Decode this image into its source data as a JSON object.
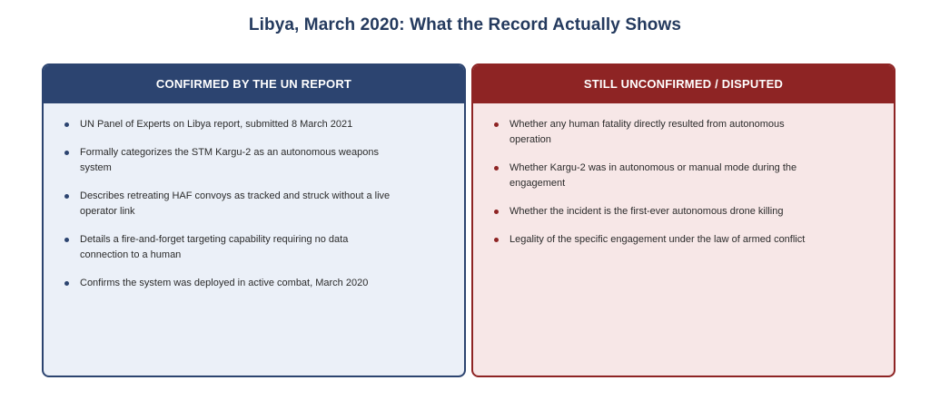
{
  "title": "Libya, March 2020: What the Record Actually Shows",
  "panels": {
    "confirmed": {
      "heading": "CONFIRMED BY THE UN REPORT",
      "accent_color": "#2c4470",
      "background_color": "#ebf0f8",
      "items": [
        "UN Panel of Experts on Libya report, submitted 8 March 2021",
        "Formally categorizes the STM Kargu-2 as an autonomous weapons system",
        "Describes retreating HAF convoys as tracked and struck without a live operator link",
        "Details a fire-and-forget targeting capability requiring no data connection to a human",
        "Confirms the system was deployed in active combat, March 2020"
      ]
    },
    "disputed": {
      "heading": "STILL UNCONFIRMED / DISPUTED",
      "accent_color": "#8e2424",
      "background_color": "#f7e7e7",
      "items": [
        "Whether any human fatality directly resulted from autonomous operation",
        "Whether Kargu-2 was in autonomous or manual mode during the engagement",
        "Whether the incident is the first-ever autonomous drone killing",
        "Legality of the specific engagement under the law of armed conflict"
      ]
    }
  }
}
